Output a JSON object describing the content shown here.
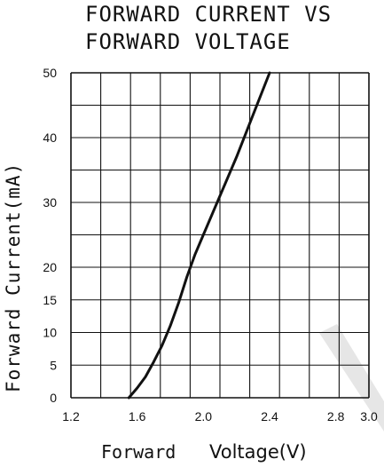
{
  "chart_data": {
    "type": "line",
    "title_lines": [
      "FORWARD CURRENT VS",
      "FORWARD VOLTAGE"
    ],
    "ylabel": "Forward   Current(mA)",
    "xlabel": [
      "Forward",
      "Voltage(V)"
    ],
    "x_ticks": [
      "1.2",
      "1.6",
      "2.0",
      "2.4",
      "2.8",
      "3.0"
    ],
    "x_tick_values": [
      1.2,
      1.6,
      2.0,
      2.4,
      2.8,
      3.0
    ],
    "y_ticks": [
      "0",
      "5",
      "10",
      "15",
      "20",
      "30",
      "40",
      "50"
    ],
    "y_tick_values": [
      0,
      5,
      10,
      15,
      20,
      30,
      40,
      50
    ],
    "xlim": [
      1.2,
      3.0
    ],
    "ylim": [
      0,
      50
    ],
    "grid": true,
    "series": [
      {
        "x": [
          1.55,
          1.6,
          1.65,
          1.7,
          1.75,
          1.8,
          1.85,
          1.9,
          1.95,
          2.0,
          2.1,
          2.2,
          2.3,
          2.4
        ],
        "y": [
          0,
          1.5,
          3.2,
          5.5,
          8.0,
          11.0,
          14.5,
          18.5,
          22.0,
          25.0,
          31.0,
          37.0,
          43.5,
          50.0
        ]
      }
    ]
  }
}
